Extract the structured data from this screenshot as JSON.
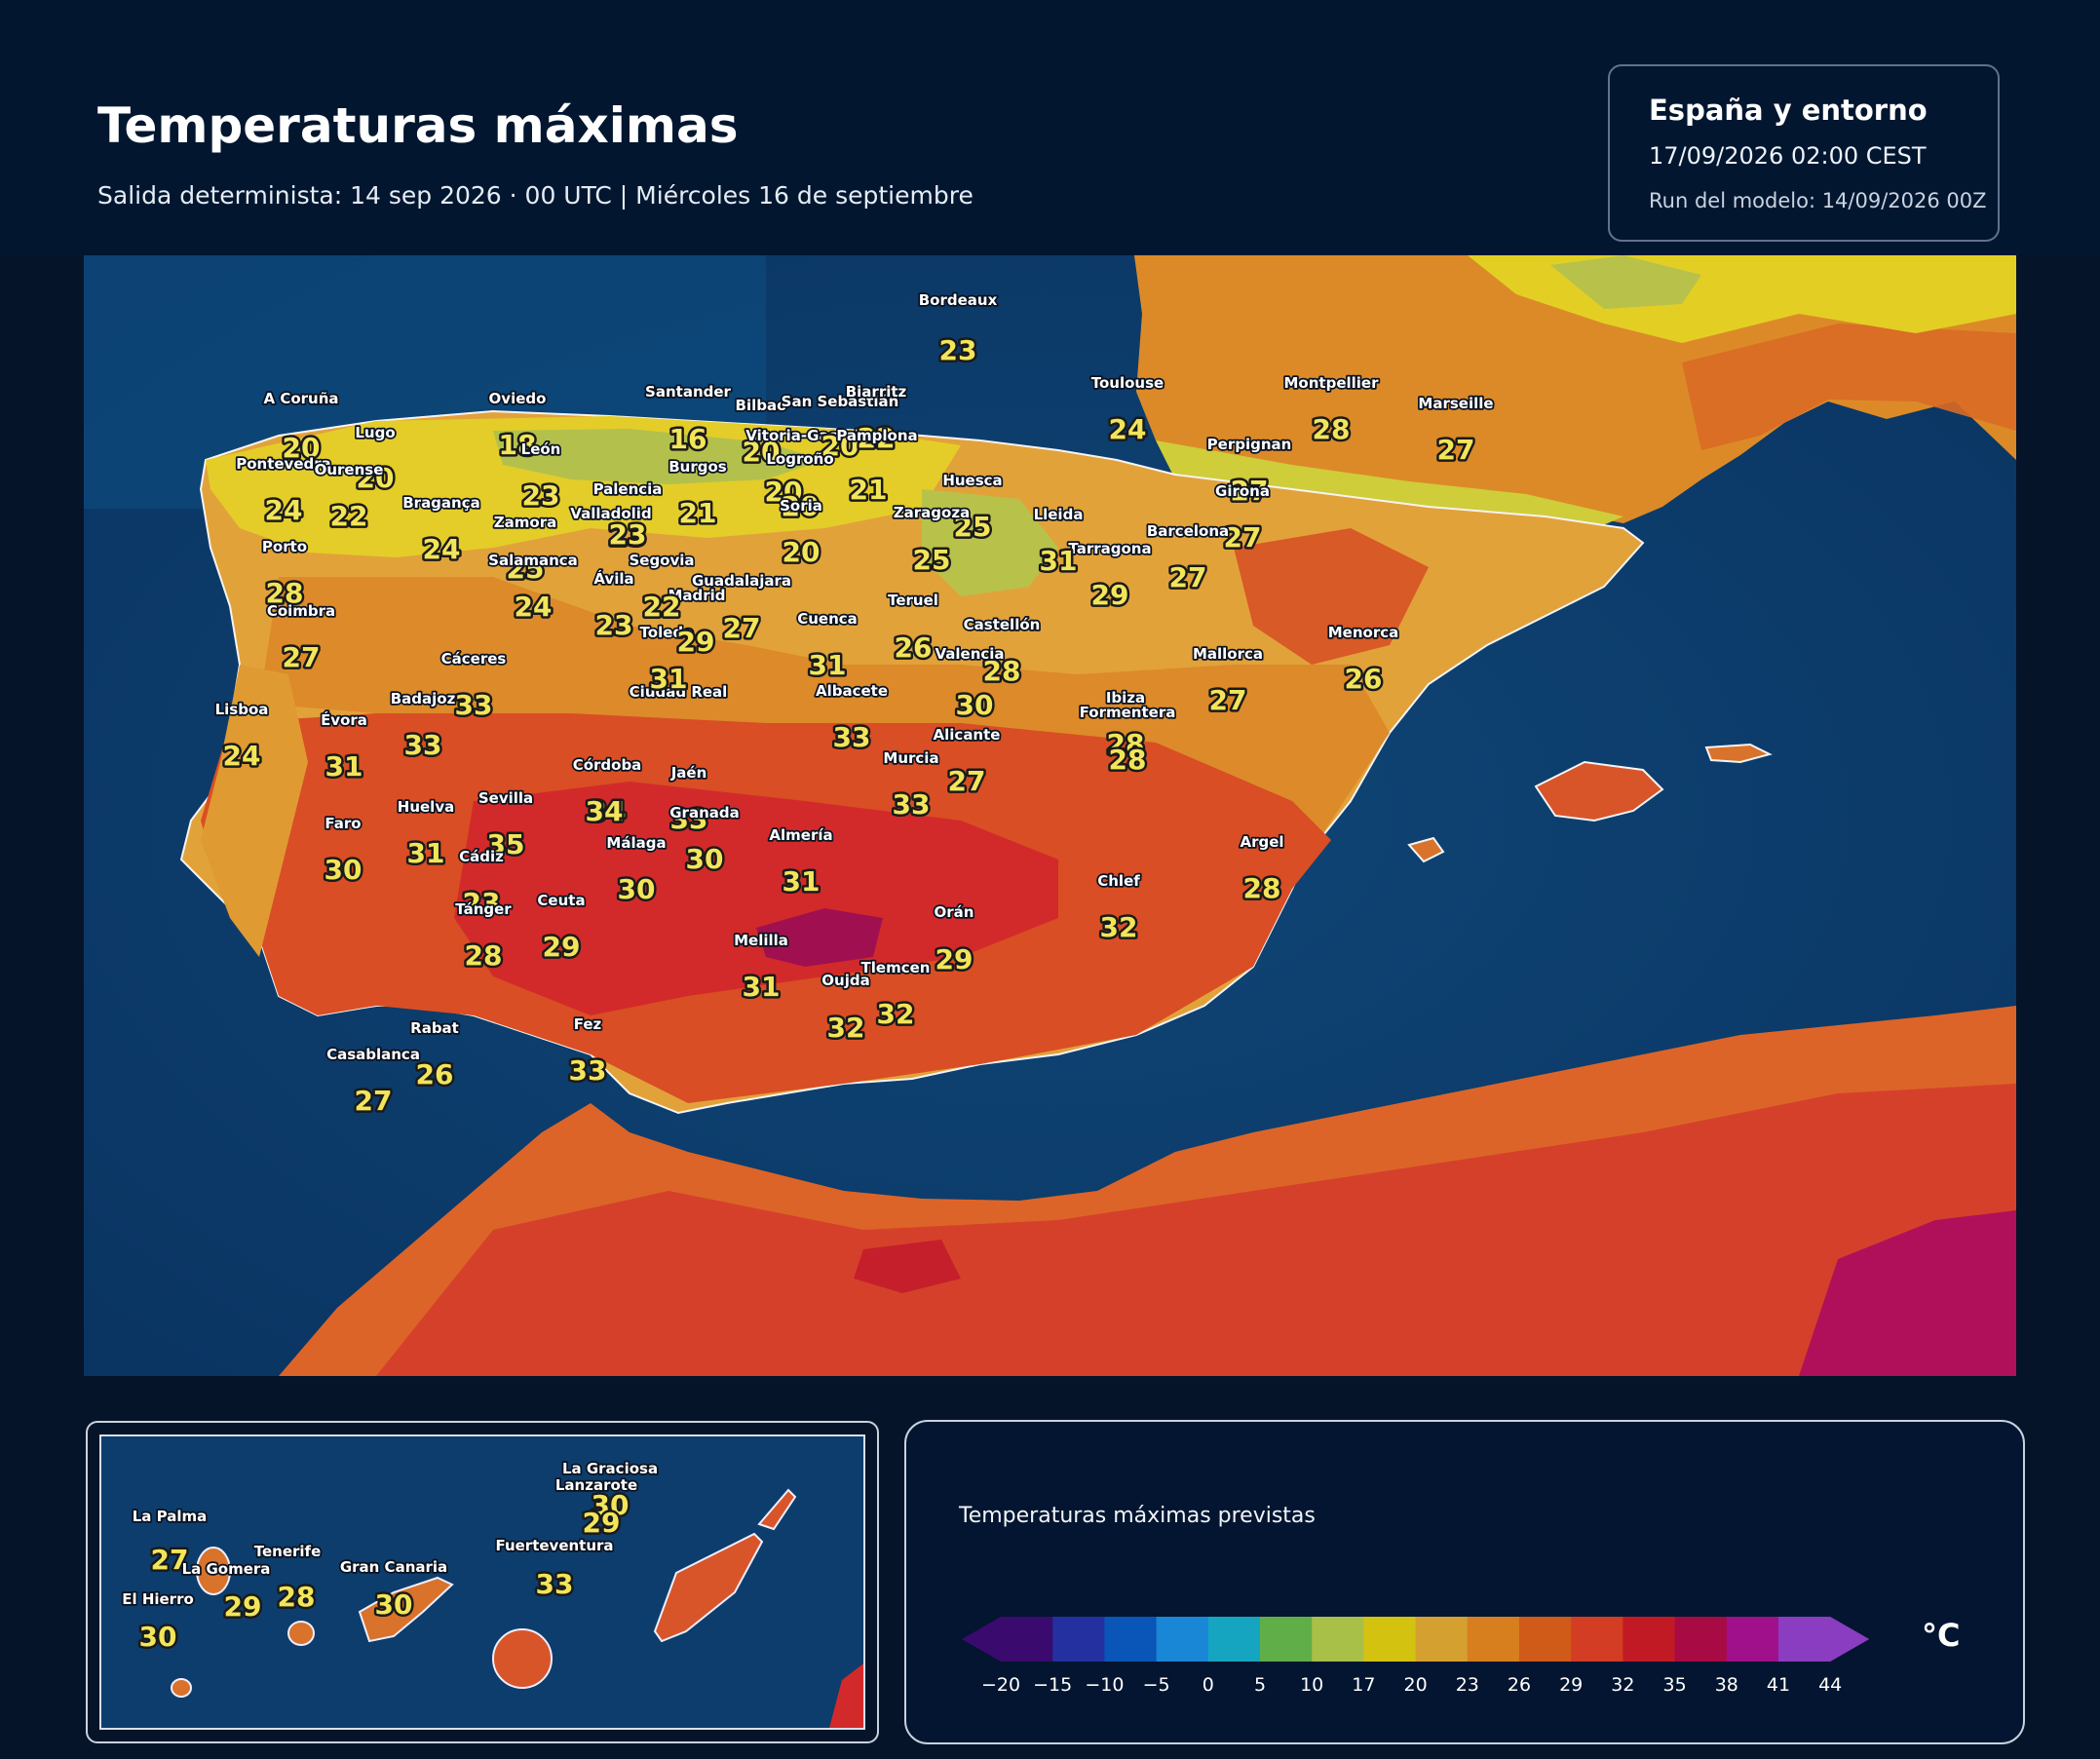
{
  "header": {
    "title": "Temperaturas máximas",
    "subtitle": "Salida determinista: 14 sep 2026 · 00 UTC  |  Miércoles 16 de septiembre"
  },
  "info_box": {
    "region": "España y entorno",
    "valid_time": "17/09/2026  02:00 CEST",
    "model_run": "Run del modelo: 14/09/2026 00Z"
  },
  "colors": {
    "sea": "#0b3c6b",
    "background": "#06142a",
    "label_fill": "#f2e55a",
    "label_stroke": "#1a1a1a"
  },
  "cities": [
    {
      "name": "A Coruña",
      "temp": "20"
    },
    {
      "name": "Lugo",
      "temp": "20"
    },
    {
      "name": "Oviedo",
      "temp": "18"
    },
    {
      "name": "Santander",
      "temp": "16"
    },
    {
      "name": "Bilbao",
      "temp": "20"
    },
    {
      "name": "Vitoria-Gasteiz",
      "temp": "20"
    },
    {
      "name": "San Sebastián",
      "temp": "20"
    },
    {
      "name": "Biarritz",
      "temp": "22"
    },
    {
      "name": "Pamplona",
      "temp": "21"
    },
    {
      "name": "Bordeaux",
      "temp": "23"
    },
    {
      "name": "Toulouse",
      "temp": "24"
    },
    {
      "name": "Montpellier",
      "temp": "28"
    },
    {
      "name": "Marseille",
      "temp": "27"
    },
    {
      "name": "Perpignan",
      "temp": "27"
    },
    {
      "name": "Girona",
      "temp": "27"
    },
    {
      "name": "Barcelona",
      "temp": "27"
    },
    {
      "name": "Tarragona",
      "temp": "29"
    },
    {
      "name": "Lleida",
      "temp": "31"
    },
    {
      "name": "Huesca",
      "temp": "25"
    },
    {
      "name": "Zaragoza",
      "temp": "25"
    },
    {
      "name": "Logroño",
      "temp": "20"
    },
    {
      "name": "Burgos",
      "temp": "21"
    },
    {
      "name": "Soria",
      "temp": "20"
    },
    {
      "name": "Pontevedra",
      "temp": "24"
    },
    {
      "name": "Ourense",
      "temp": "22"
    },
    {
      "name": "León",
      "temp": "23"
    },
    {
      "name": "Palencia",
      "temp": "23"
    },
    {
      "name": "Valladolid",
      "temp": "23"
    },
    {
      "name": "Bragança",
      "temp": "24"
    },
    {
      "name": "Zamora",
      "temp": "25"
    },
    {
      "name": "Salamanca",
      "temp": "24"
    },
    {
      "name": "Porto",
      "temp": "28"
    },
    {
      "name": "Segovia",
      "temp": "22"
    },
    {
      "name": "Ávila",
      "temp": "23"
    },
    {
      "name": "Madrid",
      "temp": "22"
    },
    {
      "name": "Guadalajara",
      "temp": "27"
    },
    {
      "name": "Coimbra",
      "temp": "27"
    },
    {
      "name": "Toledo",
      "temp": "29"
    },
    {
      "name": "Cuenca",
      "temp": "31"
    },
    {
      "name": "Teruel",
      "temp": "26"
    },
    {
      "name": "Castellón",
      "temp": "28"
    },
    {
      "name": "Cáceres",
      "temp": "33"
    },
    {
      "name": "Ciudad Real",
      "temp": "31"
    },
    {
      "name": "Valencia",
      "temp": "30"
    },
    {
      "name": "Mallorca",
      "temp": "27"
    },
    {
      "name": "Menorca",
      "temp": "26"
    },
    {
      "name": "Badajoz",
      "temp": "33"
    },
    {
      "name": "Lisboa",
      "temp": "24"
    },
    {
      "name": "Évora",
      "temp": "31"
    },
    {
      "name": "Albacete",
      "temp": "33"
    },
    {
      "name": "Ibiza",
      "temp": "28"
    },
    {
      "name": "Formentera",
      "temp": "28"
    },
    {
      "name": "Alicante",
      "temp": "27"
    },
    {
      "name": "Murcia",
      "temp": "33"
    },
    {
      "name": "Córdoba",
      "temp": "34"
    },
    {
      "name": "Jaén",
      "temp": "33"
    },
    {
      "name": "Granada",
      "temp": "30"
    },
    {
      "name": "Sevilla",
      "temp": "35"
    },
    {
      "name": "Huelva",
      "temp": "31"
    },
    {
      "name": "Faro",
      "temp": "30"
    },
    {
      "name": "Cádiz",
      "temp": "23"
    },
    {
      "name": "Málaga",
      "temp": "30"
    },
    {
      "name": "Almería",
      "temp": "31"
    },
    {
      "name": "Tánger",
      "temp": "28"
    },
    {
      "name": "Ceuta",
      "temp": "29"
    },
    {
      "name": "Melilla",
      "temp": "31"
    },
    {
      "name": "Orán",
      "temp": "29"
    },
    {
      "name": "Chlef",
      "temp": "32"
    },
    {
      "name": "Argel",
      "temp": "28"
    },
    {
      "name": "Oujda",
      "temp": "32"
    },
    {
      "name": "Tlemcen",
      "temp": "32"
    },
    {
      "name": "Rabat",
      "temp": "26"
    },
    {
      "name": "Casablanca",
      "temp": "27"
    },
    {
      "name": "Fez",
      "temp": "33"
    },
    {
      "name": "",
      "temp": "34"
    },
    {
      "name": "",
      "temp": "31"
    }
  ],
  "canarias": [
    {
      "name": "La Graciosa",
      "temp": "30"
    },
    {
      "name": "Lanzarote",
      "temp": "29"
    },
    {
      "name": "La Palma",
      "temp": "27"
    },
    {
      "name": "Tenerife",
      "temp": "28"
    },
    {
      "name": "La Gomera",
      "temp": "29"
    },
    {
      "name": "Gran Canaria",
      "temp": "30"
    },
    {
      "name": "Fuerteventura",
      "temp": "33"
    },
    {
      "name": "El Hierro",
      "temp": "30"
    }
  ],
  "legend": {
    "title": "Temperaturas máximas previstas",
    "unit": "°C",
    "ticks": [
      "−20",
      "−15",
      "−10",
      "−5",
      "0",
      "5",
      "10",
      "17",
      "20",
      "23",
      "26",
      "29",
      "32",
      "35",
      "38",
      "41",
      "44"
    ],
    "colors": [
      "#3a0a6e",
      "#2530a0",
      "#0a55b8",
      "#1a86d6",
      "#16a5c0",
      "#5fae48",
      "#a8bf48",
      "#d4c210",
      "#d4a030",
      "#d77f1e",
      "#d05a18",
      "#d23d24",
      "#c21a24",
      "#a80a44",
      "#a0108a",
      "#8a3dc0"
    ]
  }
}
